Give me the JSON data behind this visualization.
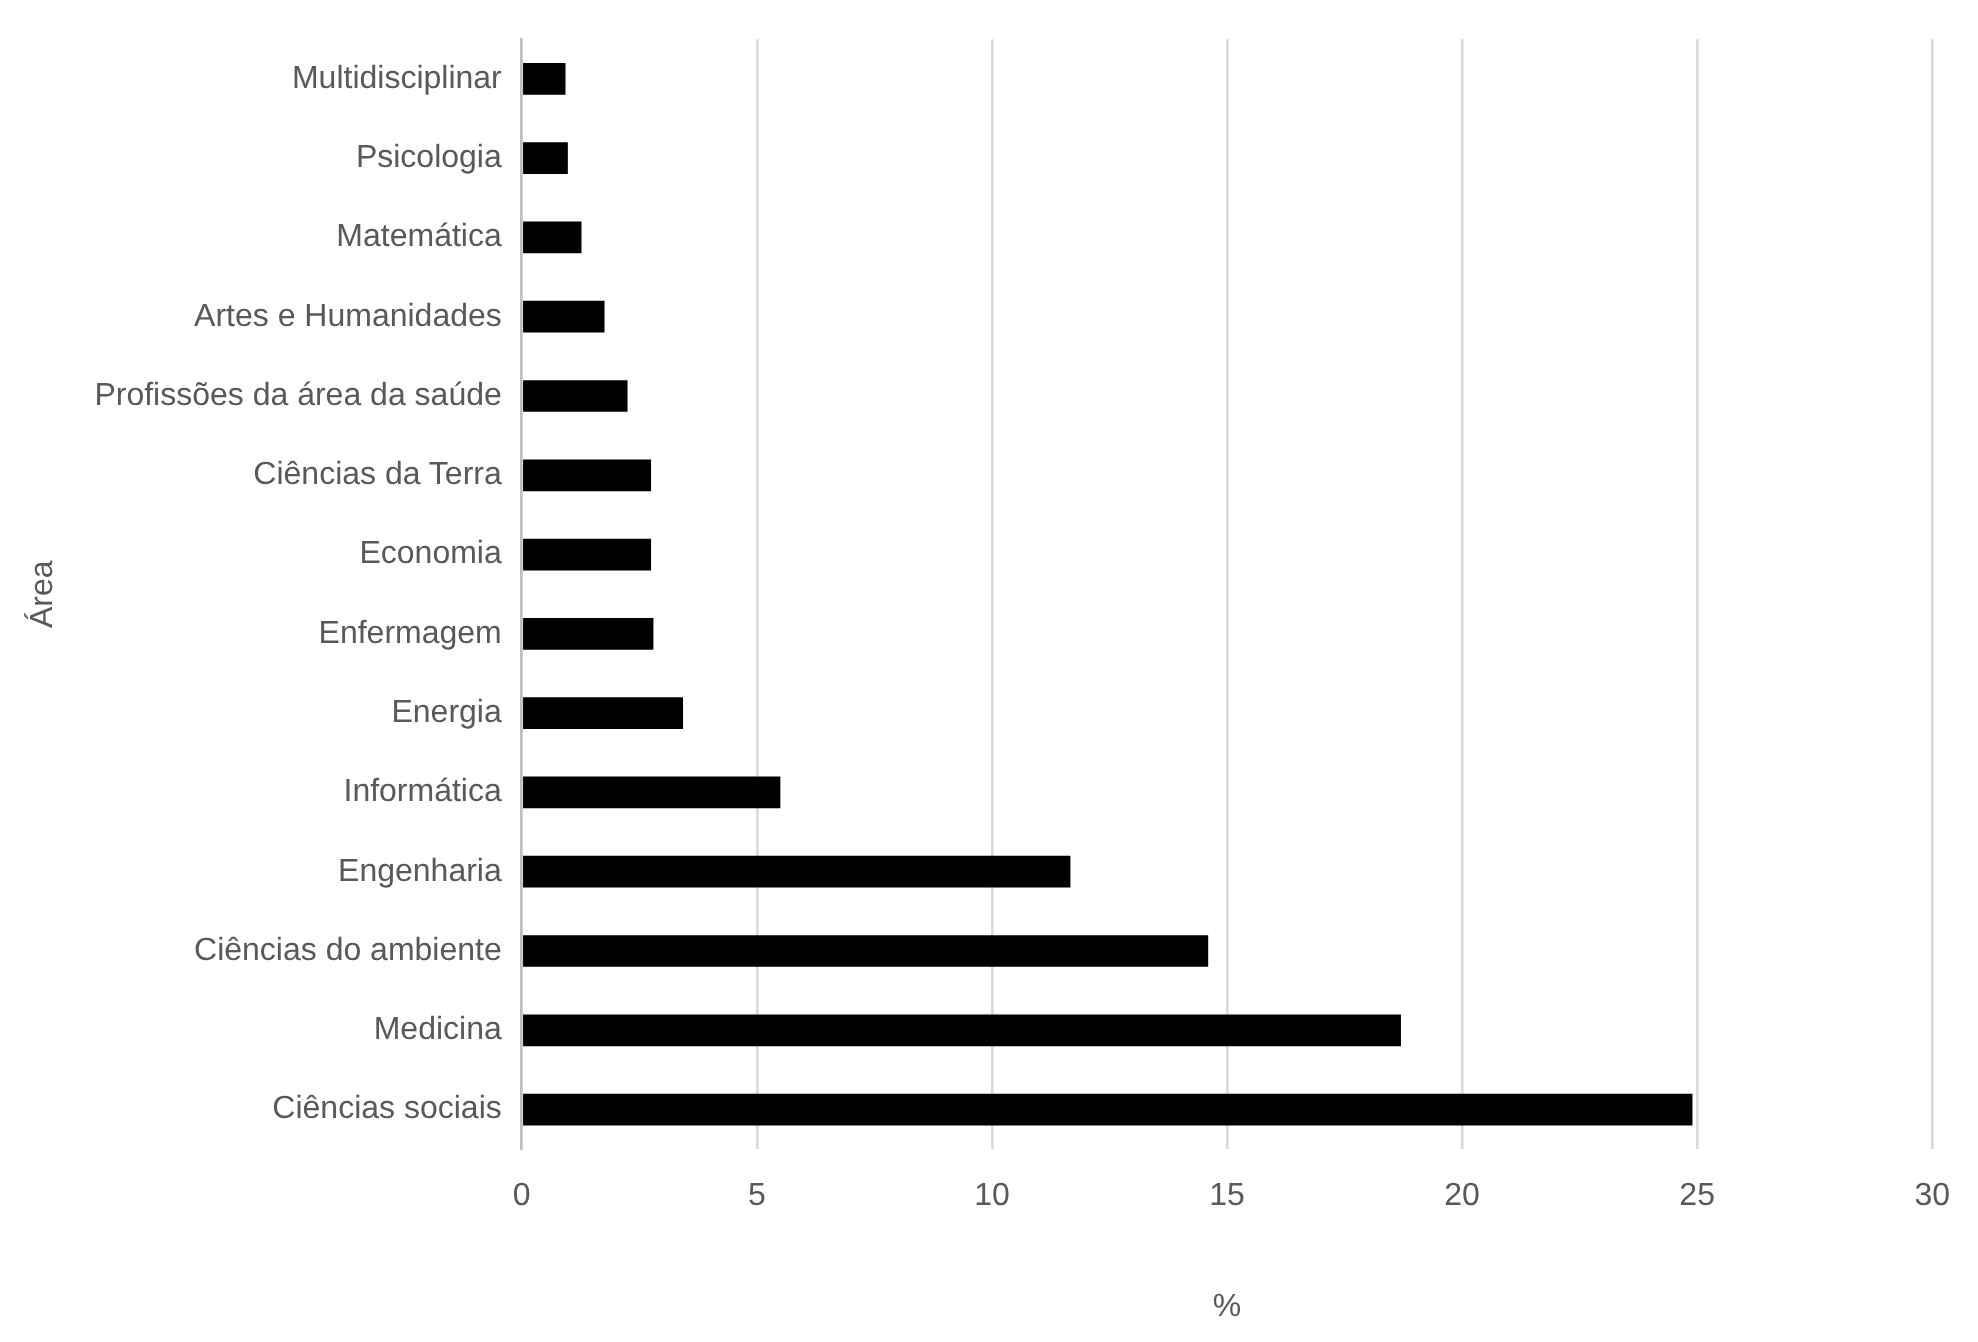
{
  "chart_data": {
    "type": "bar",
    "orientation": "horizontal",
    "xlabel": "%",
    "ylabel": "Área",
    "categories": [
      "Multidisciplinar",
      "Psicologia",
      "Matemática",
      "Artes e Humanidades",
      "Profissões da área da saúde",
      "Ciências da Terra",
      "Economia",
      "Enfermagem",
      "Energia",
      "Informática",
      "Engenharia",
      "Ciências do ambiente",
      "Medicina",
      "Ciências sociais"
    ],
    "values": [
      0.93,
      0.98,
      1.27,
      1.76,
      2.25,
      2.75,
      2.75,
      2.8,
      3.43,
      5.5,
      11.67,
      14.6,
      18.7,
      24.9
    ],
    "color": "#000000",
    "xlim": [
      0,
      30
    ],
    "xticks": [
      0,
      5,
      10,
      15,
      20,
      25,
      30
    ],
    "grid": "x",
    "legend": false
  }
}
